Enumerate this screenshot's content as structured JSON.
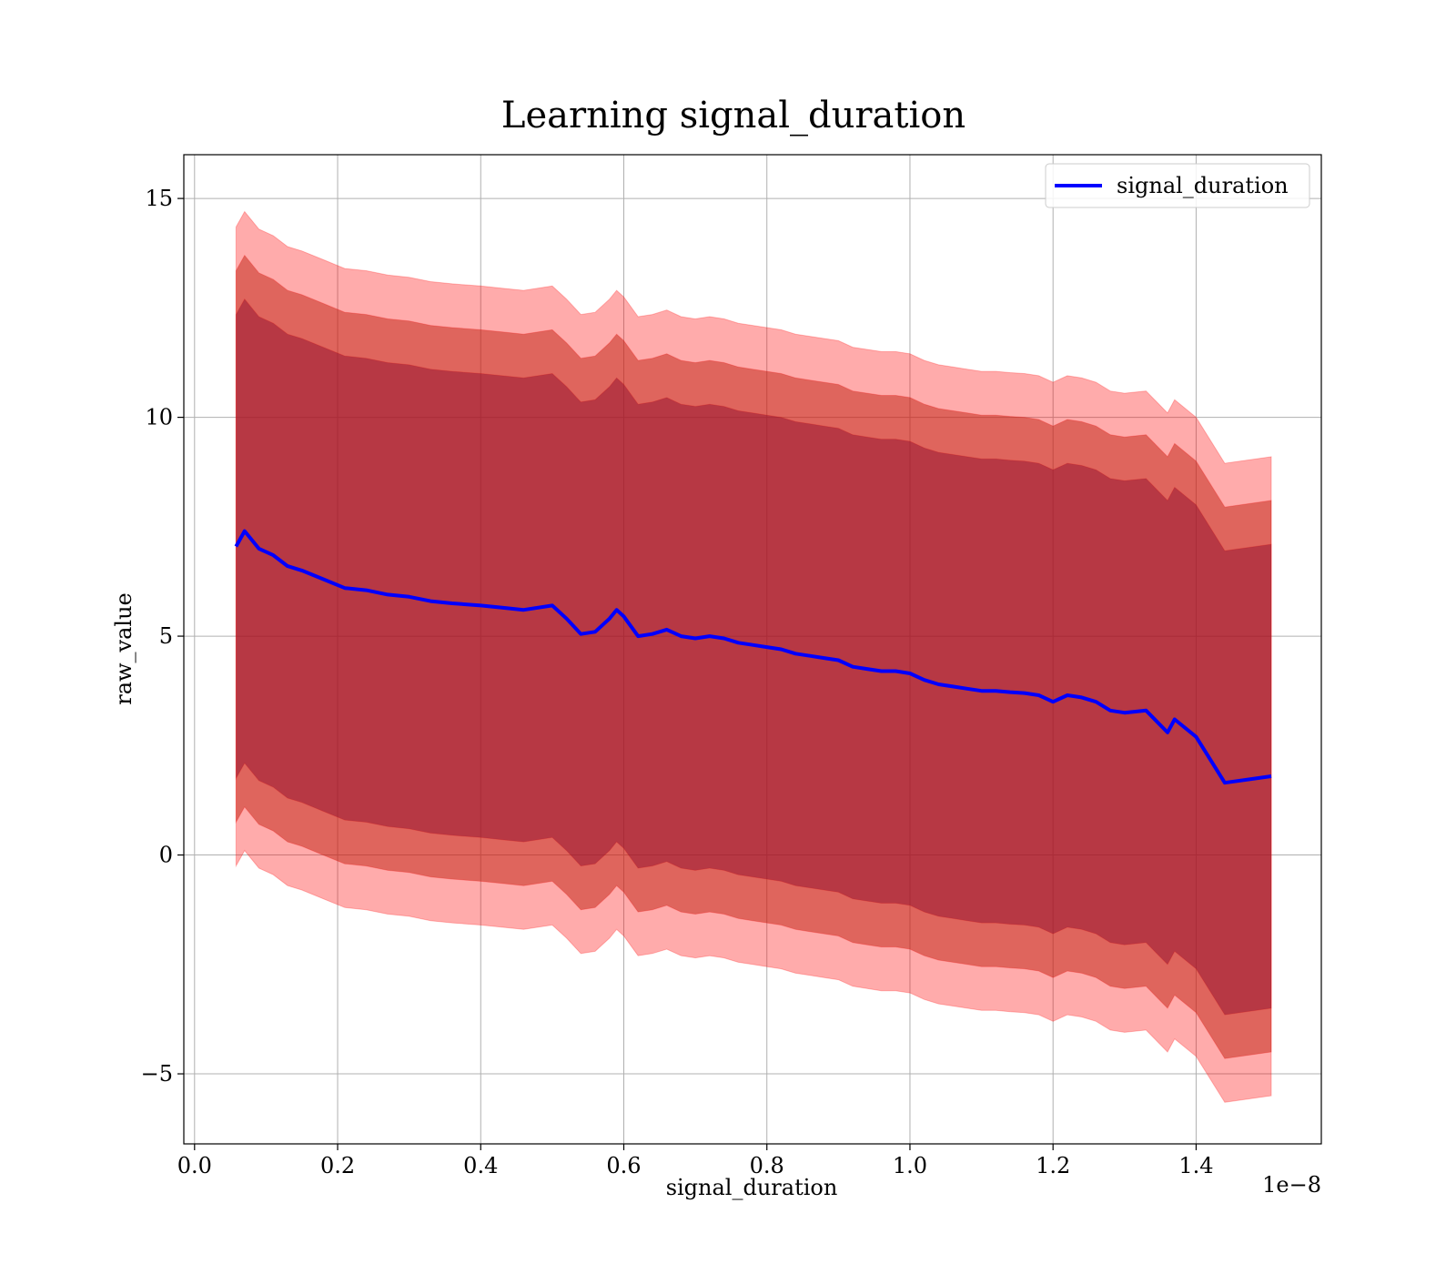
{
  "chart_data": {
    "type": "area",
    "title": "Learning signal_duration",
    "xlabel": "signal_duration",
    "ylabel": "raw_value",
    "x_offset_label": "1e−8",
    "x_scale": 1e-08,
    "xlim": [
      -0.015,
      1.575
    ],
    "ylim": [
      -6.6,
      16.0
    ],
    "x_ticks": [
      0.0,
      0.2,
      0.4,
      0.6,
      0.8,
      1.0,
      1.2,
      1.4
    ],
    "x_tick_labels": [
      "0.0",
      "0.2",
      "0.4",
      "0.6",
      "0.8",
      "1.0",
      "1.2",
      "1.4"
    ],
    "y_ticks": [
      -5,
      0,
      5,
      10,
      15
    ],
    "y_tick_labels": [
      "−5",
      "0",
      "5",
      "10",
      "15"
    ],
    "grid": true,
    "legend_position": "upper right",
    "legend": [
      "signal_duration"
    ],
    "colors": {
      "line": "#0000ff",
      "band": "#ff0000",
      "band_overlap": "#804020",
      "grid": "#b0b0b0"
    },
    "x": [
      0.058,
      0.07,
      0.09,
      0.11,
      0.13,
      0.15,
      0.18,
      0.21,
      0.24,
      0.27,
      0.3,
      0.33,
      0.36,
      0.4,
      0.43,
      0.46,
      0.5,
      0.52,
      0.54,
      0.56,
      0.58,
      0.59,
      0.6,
      0.62,
      0.64,
      0.66,
      0.68,
      0.7,
      0.72,
      0.74,
      0.76,
      0.78,
      0.8,
      0.82,
      0.84,
      0.86,
      0.88,
      0.9,
      0.92,
      0.94,
      0.96,
      0.98,
      1.0,
      1.02,
      1.04,
      1.06,
      1.08,
      1.1,
      1.12,
      1.14,
      1.16,
      1.18,
      1.2,
      1.22,
      1.24,
      1.26,
      1.28,
      1.3,
      1.33,
      1.36,
      1.37,
      1.4,
      1.44,
      1.505
    ],
    "series": [
      {
        "name": "signal_duration",
        "values": [
          7.05,
          7.4,
          7.0,
          6.85,
          6.6,
          6.5,
          6.3,
          6.1,
          6.05,
          5.95,
          5.9,
          5.8,
          5.75,
          5.7,
          5.65,
          5.6,
          5.7,
          5.4,
          5.05,
          5.1,
          5.4,
          5.6,
          5.45,
          5.0,
          5.05,
          5.15,
          5.0,
          4.95,
          5.0,
          4.95,
          4.85,
          4.8,
          4.75,
          4.7,
          4.6,
          4.55,
          4.5,
          4.45,
          4.3,
          4.25,
          4.2,
          4.2,
          4.15,
          4.0,
          3.9,
          3.85,
          3.8,
          3.75,
          3.75,
          3.72,
          3.7,
          3.65,
          3.5,
          3.65,
          3.6,
          3.5,
          3.3,
          3.25,
          3.3,
          2.8,
          3.1,
          2.7,
          1.65,
          1.8
        ]
      }
    ],
    "band_half_widths": [
      5.3,
      6.3,
      7.3
    ]
  }
}
